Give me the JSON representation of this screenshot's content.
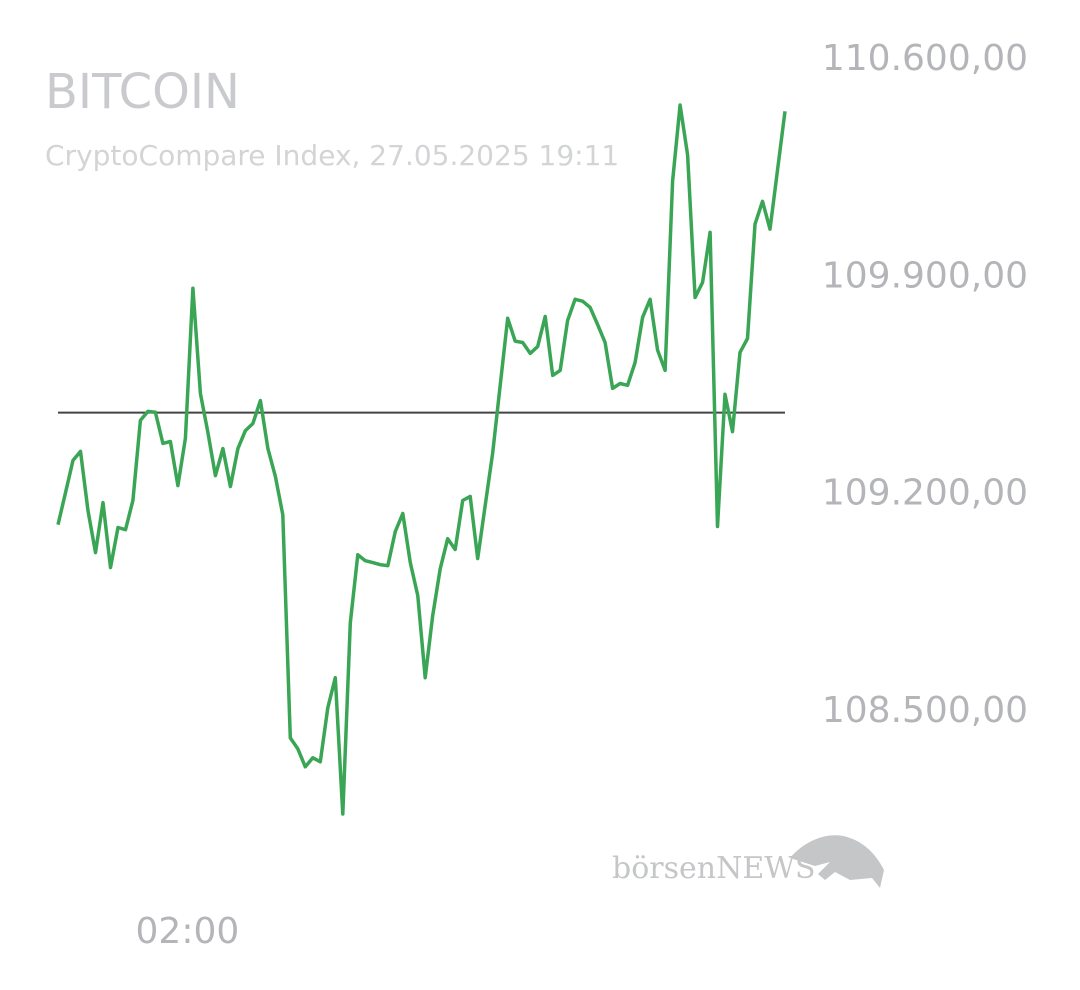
{
  "chart_data": {
    "type": "line",
    "title": "BITCOIN",
    "subtitle": "CryptoCompare Index, 27.05.2025 19:11",
    "watermark": "börsenNEWS",
    "categories": [
      null,
      null,
      null,
      null,
      null,
      null,
      null,
      null,
      null,
      null,
      null,
      null,
      null,
      null,
      null,
      null,
      null,
      "02:00",
      null,
      null,
      null,
      null,
      null,
      null,
      null,
      null,
      null,
      null,
      null,
      null,
      null,
      null,
      null,
      null,
      null,
      null,
      null,
      null,
      null,
      null,
      null,
      null,
      null,
      null,
      null,
      null,
      null,
      null,
      null,
      null,
      null,
      null,
      null,
      null,
      null,
      null,
      null,
      null,
      null,
      null,
      null,
      null,
      null,
      null,
      null,
      null,
      null,
      null,
      null,
      null,
      null,
      null,
      null,
      null,
      null,
      null,
      null,
      null,
      null,
      null,
      null,
      null,
      null,
      null,
      null,
      null,
      null,
      null,
      null,
      null,
      null,
      null,
      null,
      null,
      null,
      null,
      null,
      null
    ],
    "series": [
      {
        "name": "BITCOIN",
        "color": "#3aa655",
        "values": [
          109103,
          109206,
          109310,
          109339,
          109148,
          109013,
          109174,
          108965,
          109094,
          109087,
          109181,
          109439,
          109468,
          109465,
          109365,
          109371,
          109229,
          109381,
          109865,
          109526,
          109400,
          109261,
          109348,
          109226,
          109348,
          109406,
          109429,
          109503,
          109348,
          109258,
          109135,
          108416,
          108381,
          108323,
          108352,
          108339,
          108513,
          108610,
          108171,
          108787,
          109006,
          108987,
          108981,
          108974,
          108971,
          109081,
          109139,
          108981,
          108874,
          108610,
          108810,
          108961,
          109058,
          109023,
          109181,
          109194,
          108994,
          109165,
          109335,
          109552,
          109768,
          109694,
          109690,
          109655,
          109677,
          109774,
          109584,
          109600,
          109761,
          109829,
          109823,
          109803,
          109748,
          109690,
          109542,
          109558,
          109552,
          109626,
          109771,
          109829,
          109665,
          109600,
          110210,
          110455,
          110294,
          109835,
          109884,
          110045,
          109097,
          109523,
          109403,
          109658,
          109703,
          110071,
          110145,
          110055,
          110245,
          110435
        ]
      }
    ],
    "baseline": 109464,
    "ylim": [
      108100,
      110700
    ],
    "yticks": [
      {
        "value": 110600,
        "label": "110.600,00"
      },
      {
        "value": 109900,
        "label": "109.900,00"
      },
      {
        "value": 109200,
        "label": "109.200,00"
      },
      {
        "value": 108500,
        "label": "108.500,00"
      }
    ],
    "grid": false
  }
}
